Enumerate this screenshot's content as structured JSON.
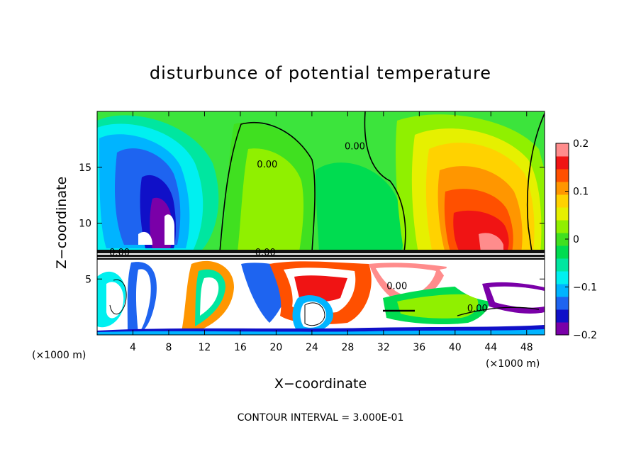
{
  "chart_data": {
    "type": "heatmap",
    "title": "disturbunce of potential temperature",
    "xlabel": "X−coordinate",
    "ylabel": "Z−coordinate",
    "x_unit_left": "(×1000 m)",
    "x_unit_right": "(×1000 m)",
    "xlim": [
      0,
      50
    ],
    "ylim": [
      0,
      20
    ],
    "x_ticks": [
      4,
      8,
      12,
      16,
      20,
      24,
      28,
      32,
      36,
      40,
      44,
      48
    ],
    "y_ticks": [
      5,
      10,
      15
    ],
    "colorbar": {
      "min": -0.2,
      "max": 0.2,
      "ticks": [
        0.2,
        0.1,
        0,
        -0.1,
        -0.2
      ],
      "tick_labels": [
        "0.2",
        "0.1",
        "0",
        "−0.1",
        "−0.2"
      ],
      "colors": [
        "#7a00a8",
        "#1010c8",
        "#1e64f0",
        "#00b4ff",
        "#00f0f0",
        "#00e6a0",
        "#00dc50",
        "#40e020",
        "#90f000",
        "#e6f000",
        "#ffd200",
        "#ff9600",
        "#ff5000",
        "#f01414",
        "#ff8c8c"
      ]
    },
    "contour_labels": [
      {
        "text": "0.00",
        "x": 19,
        "y": 15
      },
      {
        "text": "0.00",
        "x": 28.8,
        "y": 16.6
      },
      {
        "text": "0.00",
        "x": 2.5,
        "y": 7.1
      },
      {
        "text": "0.00",
        "x": 18.8,
        "y": 7.1
      },
      {
        "text": "0.00",
        "x": 33.5,
        "y": 4.1
      },
      {
        "text": "0.00",
        "x": 42.5,
        "y": 2.1
      }
    ],
    "contour_interval_text": "CONTOUR INTERVAL = 3.000E-01",
    "grid": false,
    "legend": "colorbar right"
  }
}
